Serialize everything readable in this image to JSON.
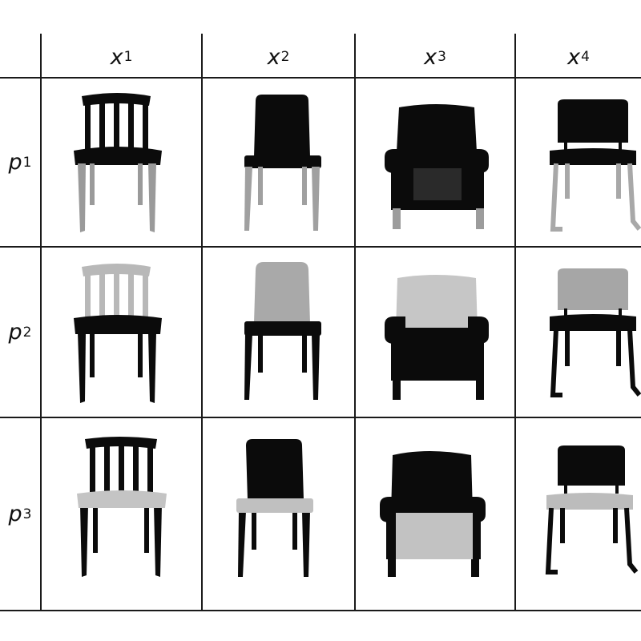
{
  "columns": [
    {
      "var": "x",
      "sub": "1"
    },
    {
      "var": "x",
      "sub": "2"
    },
    {
      "var": "x",
      "sub": "3"
    },
    {
      "var": "x",
      "sub": "4"
    }
  ],
  "rows": [
    {
      "var": "p",
      "sub": "1"
    },
    {
      "var": "p",
      "sub": "2"
    },
    {
      "var": "p",
      "sub": "3"
    }
  ],
  "chairs": [
    "spindle-back-chair",
    "side-chair",
    "armchair",
    "sled-base-chair"
  ],
  "highlight_part": [
    "legs",
    "backrest",
    "seat"
  ],
  "colors": {
    "dark": "#0a0a0a",
    "light_gray": "#bdbdbd",
    "grid": "#1a1a1a"
  }
}
